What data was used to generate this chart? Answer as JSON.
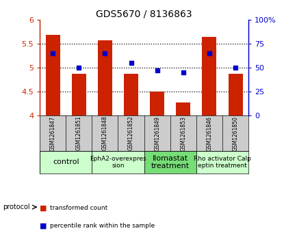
{
  "title": "GDS5670 / 8136863",
  "samples": [
    "GSM1261847",
    "GSM1261851",
    "GSM1261848",
    "GSM1261852",
    "GSM1261849",
    "GSM1261853",
    "GSM1261846",
    "GSM1261850"
  ],
  "transformed_counts": [
    5.68,
    4.87,
    5.57,
    4.87,
    4.5,
    4.27,
    5.65,
    4.87
  ],
  "percentile_ranks": [
    65,
    50,
    65,
    55,
    47,
    45,
    65,
    50
  ],
  "bar_color": "#cc2200",
  "dot_color": "#0000cc",
  "ylim_left": [
    4.0,
    6.0
  ],
  "ylim_right": [
    0,
    100
  ],
  "yticks_left": [
    4.0,
    4.5,
    5.0,
    5.5,
    6.0
  ],
  "yticks_right": [
    0,
    25,
    50,
    75,
    100
  ],
  "ytick_labels_left": [
    "4",
    "4.5",
    "5",
    "5.5",
    "6"
  ],
  "ytick_labels_right": [
    "0",
    "25",
    "50",
    "75",
    "100%"
  ],
  "protocols": [
    {
      "label": "control",
      "start": 0,
      "end": 2,
      "color": "#ccffcc"
    },
    {
      "label": "EphA2-overexpres\nsion",
      "start": 2,
      "end": 4,
      "color": "#ccffcc"
    },
    {
      "label": "Ilomastat\ntreatment",
      "start": 4,
      "end": 6,
      "color": "#77dd77"
    },
    {
      "label": "Rho activator Calp\neptin treatment",
      "start": 6,
      "end": 8,
      "color": "#ccffcc"
    }
  ],
  "bar_base": 4.0,
  "bar_width": 0.55,
  "background_color": "#ffffff",
  "plot_bg_color": "#ffffff",
  "sample_bg_color": "#cccccc",
  "grid_yticks": [
    4.5,
    5.0,
    5.5
  ],
  "legend_items": [
    {
      "color": "#cc2200",
      "label": "transformed count"
    },
    {
      "color": "#0000cc",
      "label": "percentile rank within the sample"
    }
  ]
}
